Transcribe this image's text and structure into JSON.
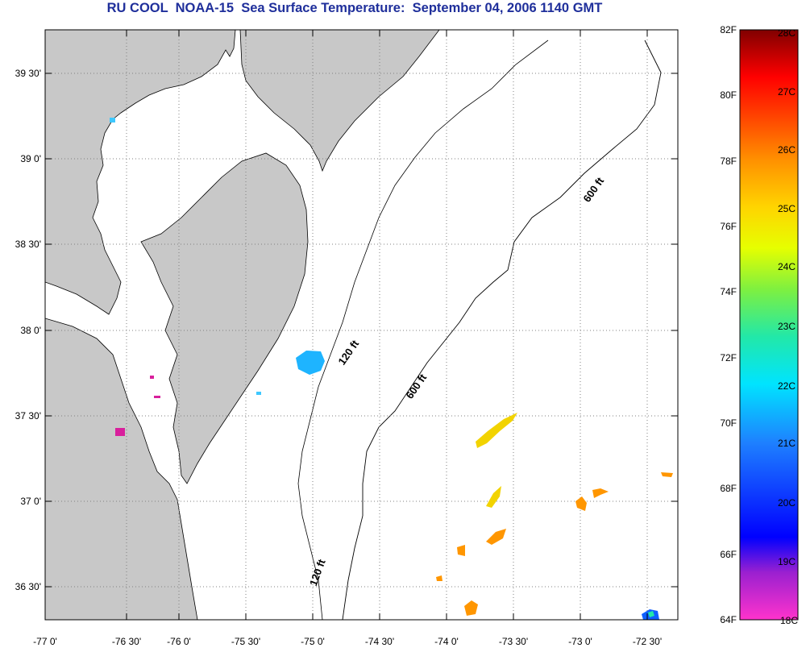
{
  "title": "RU COOL  NOAA-15  Sea Surface Temperature:  September 04, 2006 1140 GMT",
  "map": {
    "lon_labels": [
      "-77 0'",
      "-76 30'",
      "-76 0'",
      "-75 30'",
      "-75 0'",
      "-74 30'",
      "-74 0'",
      "-73 30'",
      "-73 0'",
      "-72 30'"
    ],
    "lat_labels": [
      "39 30'",
      "39 0'",
      "38 30'",
      "38 0'",
      "37 30'",
      "37 0'",
      "36 30'"
    ],
    "depth_labels": [
      "600 ft",
      "120 ft",
      "600 ft",
      "120 ft"
    ],
    "colors": {
      "land": "#c8c8c8",
      "ocean": "#ffffff",
      "grid": "#808080"
    }
  },
  "colorbar": {
    "fahrenheit_labels": [
      "82F",
      "80F",
      "78F",
      "76F",
      "74F",
      "72F",
      "70F",
      "68F",
      "66F",
      "64F"
    ],
    "celsius_labels": [
      "28C",
      "27C",
      "26C",
      "25C",
      "24C",
      "23C",
      "22C",
      "21C",
      "20C",
      "19C",
      "18C"
    ],
    "range_f": [
      64,
      82
    ],
    "range_c": [
      18,
      28
    ]
  }
}
